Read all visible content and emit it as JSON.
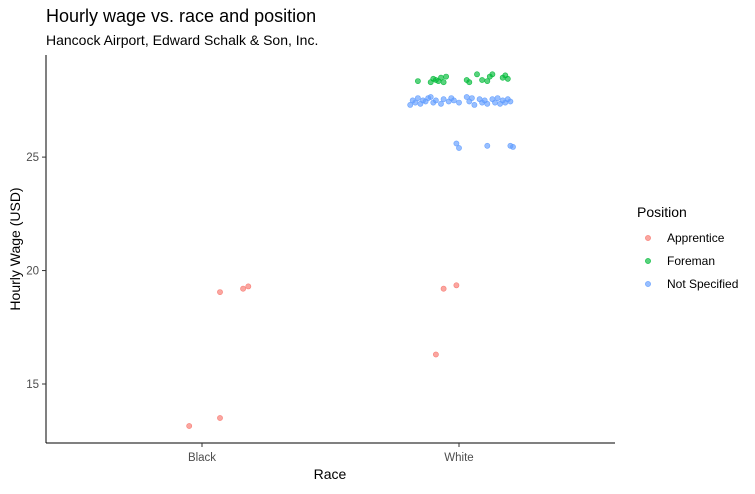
{
  "chart_data": {
    "type": "scatter",
    "title": "Hourly wage vs. race and position",
    "subtitle": "Hancock Airport, Edward Schalk & Son, Inc.",
    "xlabel": "Race",
    "ylabel": "Hourly Wage (USD)",
    "categories": [
      "Black",
      "White"
    ],
    "ylim": [
      12.4,
      29.5
    ],
    "yticks": [
      15,
      20,
      25
    ],
    "grid": false,
    "legend": {
      "title": "Position",
      "placement": "right"
    },
    "series": [
      {
        "name": "Apprentice",
        "color": "#F8766D",
        "points": [
          {
            "x": "Black",
            "jitter": -0.05,
            "y": 13.15
          },
          {
            "x": "Black",
            "jitter": 0.07,
            "y": 13.5
          },
          {
            "x": "Black",
            "jitter": 0.07,
            "y": 19.05
          },
          {
            "x": "Black",
            "jitter": 0.16,
            "y": 19.2
          },
          {
            "x": "Black",
            "jitter": 0.18,
            "y": 19.3
          },
          {
            "x": "White",
            "jitter": -0.09,
            "y": 16.3
          },
          {
            "x": "White",
            "jitter": -0.06,
            "y": 19.2
          },
          {
            "x": "White",
            "jitter": -0.01,
            "y": 19.35
          }
        ]
      },
      {
        "name": "Foreman",
        "color": "#00BA38",
        "points": [
          {
            "x": "White",
            "jitter": -0.16,
            "y": 28.35
          },
          {
            "x": "White",
            "jitter": -0.11,
            "y": 28.3
          },
          {
            "x": "White",
            "jitter": -0.1,
            "y": 28.45
          },
          {
            "x": "White",
            "jitter": -0.09,
            "y": 28.4
          },
          {
            "x": "White",
            "jitter": -0.08,
            "y": 28.35
          },
          {
            "x": "White",
            "jitter": -0.07,
            "y": 28.5
          },
          {
            "x": "White",
            "jitter": -0.06,
            "y": 28.3
          },
          {
            "x": "White",
            "jitter": -0.05,
            "y": 28.55
          },
          {
            "x": "White",
            "jitter": 0.03,
            "y": 28.4
          },
          {
            "x": "White",
            "jitter": 0.04,
            "y": 28.3
          },
          {
            "x": "White",
            "jitter": 0.07,
            "y": 28.65
          },
          {
            "x": "White",
            "jitter": 0.09,
            "y": 28.4
          },
          {
            "x": "White",
            "jitter": 0.11,
            "y": 28.35
          },
          {
            "x": "White",
            "jitter": 0.12,
            "y": 28.55
          },
          {
            "x": "White",
            "jitter": 0.13,
            "y": 28.65
          },
          {
            "x": "White",
            "jitter": 0.17,
            "y": 28.5
          },
          {
            "x": "White",
            "jitter": 0.18,
            "y": 28.6
          },
          {
            "x": "White",
            "jitter": 0.19,
            "y": 28.45
          }
        ]
      },
      {
        "name": "Not Specified",
        "color": "#619CFF",
        "points": [
          {
            "x": "White",
            "jitter": -0.19,
            "y": 27.3
          },
          {
            "x": "White",
            "jitter": -0.18,
            "y": 27.5
          },
          {
            "x": "White",
            "jitter": -0.17,
            "y": 27.4
          },
          {
            "x": "White",
            "jitter": -0.16,
            "y": 27.6
          },
          {
            "x": "White",
            "jitter": -0.15,
            "y": 27.35
          },
          {
            "x": "White",
            "jitter": -0.14,
            "y": 27.5
          },
          {
            "x": "White",
            "jitter": -0.13,
            "y": 27.45
          },
          {
            "x": "White",
            "jitter": -0.12,
            "y": 27.6
          },
          {
            "x": "White",
            "jitter": -0.11,
            "y": 27.65
          },
          {
            "x": "White",
            "jitter": -0.1,
            "y": 27.4
          },
          {
            "x": "White",
            "jitter": -0.09,
            "y": 27.5
          },
          {
            "x": "White",
            "jitter": -0.07,
            "y": 27.35
          },
          {
            "x": "White",
            "jitter": -0.06,
            "y": 27.55
          },
          {
            "x": "White",
            "jitter": -0.04,
            "y": 27.45
          },
          {
            "x": "White",
            "jitter": -0.03,
            "y": 27.6
          },
          {
            "x": "White",
            "jitter": -0.02,
            "y": 27.5
          },
          {
            "x": "White",
            "jitter": 0.0,
            "y": 27.4
          },
          {
            "x": "White",
            "jitter": 0.03,
            "y": 27.65
          },
          {
            "x": "White",
            "jitter": 0.04,
            "y": 27.45
          },
          {
            "x": "White",
            "jitter": 0.05,
            "y": 27.6
          },
          {
            "x": "White",
            "jitter": 0.06,
            "y": 27.3
          },
          {
            "x": "White",
            "jitter": 0.08,
            "y": 27.55
          },
          {
            "x": "White",
            "jitter": 0.09,
            "y": 27.4
          },
          {
            "x": "White",
            "jitter": 0.1,
            "y": 27.5
          },
          {
            "x": "White",
            "jitter": 0.11,
            "y": 27.35
          },
          {
            "x": "White",
            "jitter": 0.13,
            "y": 27.55
          },
          {
            "x": "White",
            "jitter": 0.14,
            "y": 27.4
          },
          {
            "x": "White",
            "jitter": 0.15,
            "y": 27.6
          },
          {
            "x": "White",
            "jitter": 0.16,
            "y": 27.35
          },
          {
            "x": "White",
            "jitter": 0.17,
            "y": 27.5
          },
          {
            "x": "White",
            "jitter": 0.18,
            "y": 27.4
          },
          {
            "x": "White",
            "jitter": 0.19,
            "y": 27.55
          },
          {
            "x": "White",
            "jitter": 0.2,
            "y": 27.45
          },
          {
            "x": "White",
            "jitter": -0.01,
            "y": 25.6
          },
          {
            "x": "White",
            "jitter": 0.0,
            "y": 25.4
          },
          {
            "x": "White",
            "jitter": 0.11,
            "y": 25.5
          },
          {
            "x": "White",
            "jitter": 0.2,
            "y": 25.5
          },
          {
            "x": "White",
            "jitter": 0.21,
            "y": 25.45
          }
        ]
      }
    ]
  }
}
